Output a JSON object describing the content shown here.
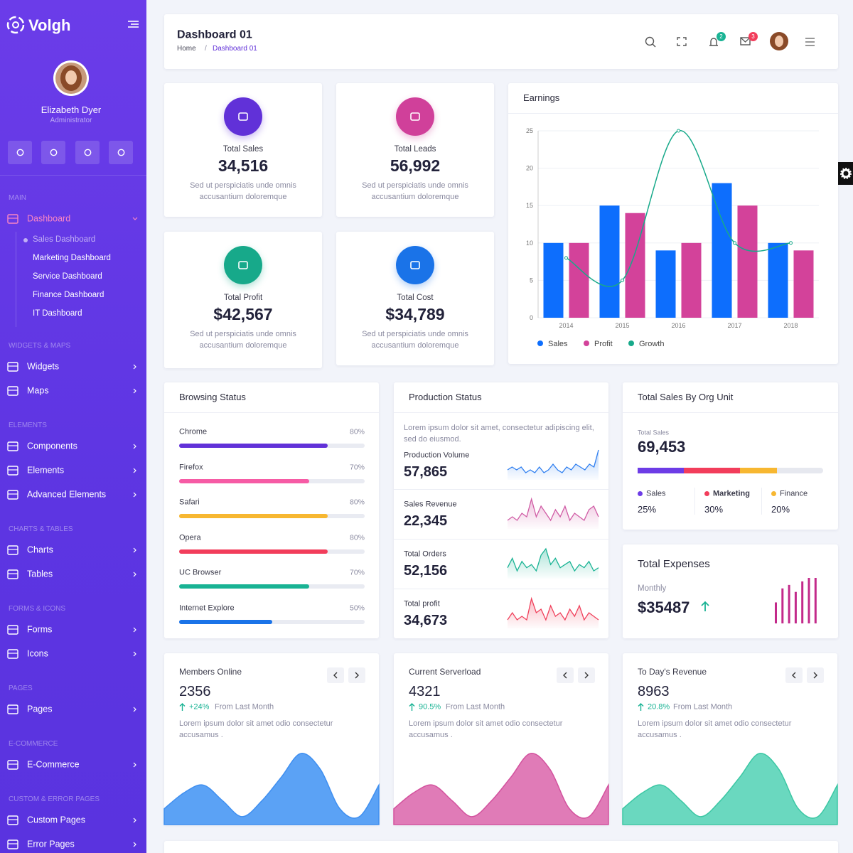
{
  "sidebar": {
    "brand": "Volgh",
    "user": {
      "name": "Elizabeth Dyer",
      "role": "Administrator"
    },
    "sections": [
      {
        "title": "MAIN",
        "items": [
          {
            "label": "Dashboard",
            "sub": [
              "Sales Dashboard",
              "Marketing Dashboard",
              "Service Dashboard",
              "Finance Dashboard",
              "IT Dashboard"
            ]
          }
        ]
      },
      {
        "title": "WIDGETS & MAPS",
        "items": [
          {
            "label": "Widgets"
          },
          {
            "label": "Maps"
          }
        ]
      },
      {
        "title": "ELEMENTS",
        "items": [
          {
            "label": "Components"
          },
          {
            "label": "Elements"
          },
          {
            "label": "Advanced Elements"
          }
        ]
      },
      {
        "title": "CHARTS & TABLES",
        "items": [
          {
            "label": "Charts"
          },
          {
            "label": "Tables"
          }
        ]
      },
      {
        "title": "FORMS & ICONS",
        "items": [
          {
            "label": "Forms"
          },
          {
            "label": "Icons"
          }
        ]
      },
      {
        "title": "PAGES",
        "items": [
          {
            "label": "Pages"
          }
        ]
      },
      {
        "title": "E-COMMERCE",
        "items": [
          {
            "label": "E-Commerce"
          }
        ]
      },
      {
        "title": "CUSTOM & ERROR PAGES",
        "items": [
          {
            "label": "Custom Pages"
          },
          {
            "label": "Error Pages"
          }
        ]
      }
    ]
  },
  "header": {
    "title": "Dashboard 01",
    "breadcrumb": [
      "Home",
      "Dashboard 01"
    ],
    "separator": "/",
    "notifications": "2",
    "messages": "3"
  },
  "stats": [
    {
      "title": "Total Sales",
      "value": "34,516",
      "description": "Sed ut perspiciatis unde omnis accusantium doloremque",
      "color": "#6131d8"
    },
    {
      "title": "Total Leads",
      "value": "56,992",
      "description": "Sed ut perspiciatis unde omnis accusantium doloremque",
      "color": "#d0409a"
    },
    {
      "title": "Total Profit",
      "value": "$42,567",
      "description": "Sed ut perspiciatis unde omnis accusantium doloremque",
      "color": "#17a98a"
    },
    {
      "title": "Total Cost",
      "value": "$34,789",
      "description": "Sed ut perspiciatis unde omnis accusantium doloremque",
      "color": "#1a73e8"
    }
  ],
  "earnings": {
    "type": "bar",
    "title": "Earnings",
    "categories": [
      "2014",
      "2015",
      "2016",
      "2017",
      "2018"
    ],
    "series": [
      {
        "name": "Sales",
        "color": "#0d6efd",
        "values": [
          10,
          15,
          9,
          18,
          10
        ]
      },
      {
        "name": "Profit",
        "color": "#d3429a",
        "values": [
          10,
          14,
          10,
          15,
          9
        ]
      },
      {
        "name": "Growth",
        "color": "#17a98a",
        "type": "line",
        "values": [
          8,
          5,
          25,
          10,
          10
        ]
      }
    ],
    "ylim": [
      0,
      25
    ],
    "yticks": [
      0,
      5,
      10,
      15,
      20,
      25
    ],
    "grid": true,
    "legend": "bottom"
  },
  "browsing": {
    "title": "Browsing Status",
    "items": [
      {
        "name": "Chrome",
        "value": 80,
        "label": "80%",
        "color": "#6131d8"
      },
      {
        "name": "Firefox",
        "value": 70,
        "label": "70%",
        "color": "#f65ba5"
      },
      {
        "name": "Safari",
        "value": 80,
        "label": "80%",
        "color": "#f7b731"
      },
      {
        "name": "Opera",
        "value": 80,
        "label": "80%",
        "color": "#f23d5b"
      },
      {
        "name": "UC Browser",
        "value": 70,
        "label": "70%",
        "color": "#19b394"
      },
      {
        "name": "Internet Explore",
        "value": 50,
        "label": "50%",
        "color": "#1a73e8"
      }
    ]
  },
  "production": {
    "title": "Production Status",
    "description": "Lorem ipsum dolor sit amet, consectetur adipiscing elit, sed do eiusmod.",
    "rows": [
      {
        "label": "Production Volume",
        "value": "57,865",
        "color": "#2f7ff0",
        "spark": [
          3,
          4,
          3,
          4,
          2,
          3,
          2,
          4,
          2,
          3,
          5,
          3,
          2,
          4,
          3,
          5,
          4,
          3,
          5,
          4,
          10
        ]
      },
      {
        "label": "Sales Revenue",
        "value": "22,345",
        "color": "#d05ca5",
        "spark": [
          2,
          3,
          2,
          4,
          3,
          8,
          3,
          6,
          4,
          2,
          5,
          3,
          6,
          2,
          4,
          3,
          2,
          5,
          6,
          3
        ]
      },
      {
        "label": "Total Orders",
        "value": "52,156",
        "color": "#19b394",
        "spark": [
          3,
          6,
          2,
          5,
          3,
          4,
          2,
          7,
          9,
          4,
          6,
          3,
          4,
          5,
          2,
          4,
          3,
          5,
          2,
          3
        ]
      },
      {
        "label": "Total profit",
        "value": "34,673",
        "color": "#f0415c",
        "spark": [
          2,
          4,
          2,
          3,
          2,
          8,
          4,
          5,
          2,
          6,
          3,
          4,
          2,
          5,
          3,
          6,
          2,
          4,
          3,
          2
        ]
      }
    ]
  },
  "org_sales": {
    "title": "Total Sales By Org Unit",
    "label": "Total Sales",
    "value": "69,453",
    "units": [
      {
        "name": "Sales",
        "value": 25,
        "label": "25%",
        "color": "#6d3ce6"
      },
      {
        "name": "Marketing",
        "value": 30,
        "label": "30%",
        "color": "#f23d5b"
      },
      {
        "name": "Finance",
        "value": 20,
        "label": "20%",
        "color": "#f7b731"
      }
    ]
  },
  "expenses": {
    "title": "Total Expenses",
    "period": "Monthly",
    "value": "$35487",
    "color": "#c32a8a",
    "bars": [
      30,
      50,
      55,
      45,
      60,
      65,
      65
    ]
  },
  "widgets": [
    {
      "title": "Members Online",
      "value": "2356",
      "change": "+24%",
      "note": "From Last Month",
      "description": "Lorem ipsum dolor sit amet odio consectetur accusamus .",
      "color": "#5ba2f5",
      "area": [
        2,
        4,
        5,
        3,
        1,
        3,
        6,
        9,
        7,
        2,
        1,
        5
      ]
    },
    {
      "title": "Current Serverload",
      "value": "4321",
      "change": "90.5%",
      "note": "From Last Month",
      "description": "Lorem ipsum dolor sit amet odio consectetur accusamus .",
      "color": "#e07bb7",
      "area": [
        2,
        4,
        5,
        3,
        1,
        3,
        6,
        9,
        7,
        2,
        1,
        5
      ]
    },
    {
      "title": "To Day's Revenue",
      "value": "8963",
      "change": "20.8%",
      "note": "From Last Month",
      "description": "Lorem ipsum dolor sit amet odio consectetur accusamus .",
      "color": "#6ad8bf",
      "area": [
        2,
        4,
        5,
        3,
        1,
        3,
        6,
        9,
        7,
        2,
        1,
        5
      ]
    }
  ]
}
